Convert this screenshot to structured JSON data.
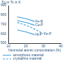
{
  "chart_data": {
    "type": "line",
    "y_label": "Tg or Tc in K",
    "x_label": "Nonmetal atomic concentration (%)",
    "x": [
      10,
      15,
      20,
      25,
      30,
      35
    ],
    "series": [
      {
        "name": "Fe-B",
        "color": "#3aa0d8",
        "line_style": "solid",
        "values": [
          null,
          780,
          760,
          730,
          null,
          null
        ]
      },
      {
        "name": "Co-P",
        "color": "#3aa0d8",
        "line_style": "solid",
        "values": [
          null,
          740,
          720,
          690,
          null,
          null
        ]
      },
      {
        "name": "Fe-P",
        "color": "#3aa0d8",
        "line_style": "dashed",
        "values": [
          null,
          720,
          690,
          650,
          600,
          null
        ]
      },
      {
        "name": "Ni-P",
        "color": "#3aa0d8",
        "line_style": "solid",
        "values": [
          null,
          640,
          620,
          590,
          null,
          null
        ]
      }
    ],
    "annotations": [
      {
        "text": "amorphous material",
        "line_style": "solid"
      },
      {
        "text": "crystalline material",
        "line_style": "dashed"
      }
    ],
    "xlim": [
      10,
      40
    ],
    "xticks": [
      10,
      20,
      30,
      40
    ],
    "ylim": [
      500,
      900
    ],
    "yticks": [
      500,
      600,
      700,
      800,
      900
    ],
    "grid": false,
    "marker": "none"
  }
}
